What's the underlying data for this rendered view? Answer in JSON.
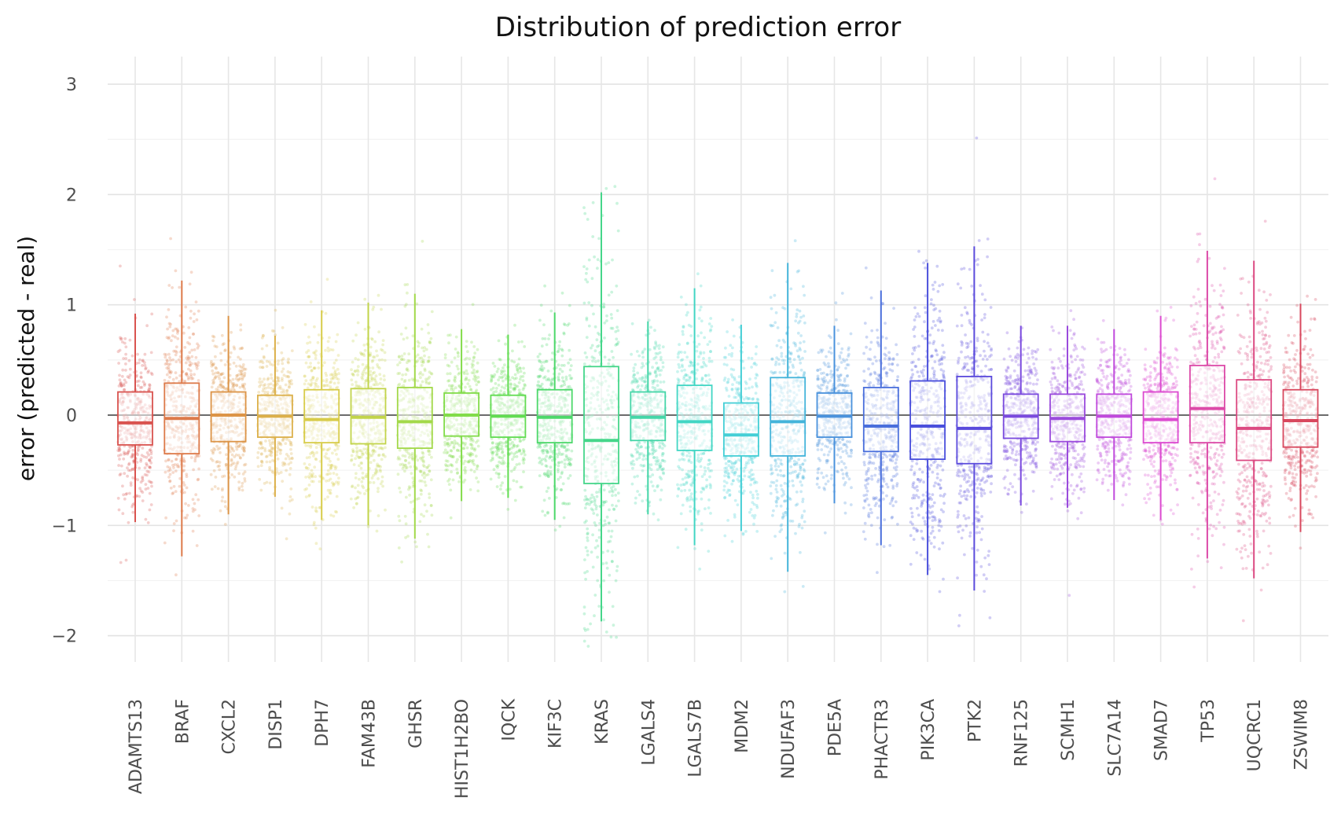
{
  "chart_data": {
    "type": "box",
    "title": "Distribution of prediction error",
    "xlabel": "",
    "ylabel": "error (predicted - real)",
    "ylim": [
      -2.2,
      3.25
    ],
    "yticks": [
      -2,
      -1,
      0,
      1,
      2,
      3
    ],
    "ytick_labels": [
      "−2",
      "−1",
      "0",
      "1",
      "2",
      "3"
    ],
    "grid": true,
    "zero_line": 0,
    "overlay": "jittered points",
    "categories": [
      "ADAMTS13",
      "BRAF",
      "CXCL2",
      "DISP1",
      "DPH7",
      "FAM43B",
      "GHSR",
      "HIST1H2BO",
      "IQCK",
      "KIF3C",
      "KRAS",
      "LGALS4",
      "LGALS7B",
      "MDM2",
      "NDUFAF3",
      "PDE5A",
      "PHACTR3",
      "PIK3CA",
      "PTK2",
      "RNF125",
      "SCMH1",
      "SLC7A14",
      "SMAD7",
      "TP53",
      "UQCRC1",
      "ZSWIM8"
    ],
    "colors": [
      "#d9534f",
      "#dd7a4a",
      "#dc9447",
      "#dcb04a",
      "#d8cc4a",
      "#c2d44a",
      "#a3d94a",
      "#82dc4a",
      "#62dc52",
      "#4dd86a",
      "#45d68a",
      "#45d6a8",
      "#42d6c4",
      "#45cfd6",
      "#44b4da",
      "#4a92dc",
      "#4a6fdc",
      "#4a4fdc",
      "#5a4adc",
      "#7a4ade",
      "#9a4adc",
      "#c04adc",
      "#dc4ad0",
      "#dc4aa8",
      "#dc4a82",
      "#d8485e"
    ],
    "boxes": [
      {
        "name": "ADAMTS13",
        "whislo": -0.97,
        "q1": -0.27,
        "med": -0.07,
        "q3": 0.21,
        "whishi": 0.92
      },
      {
        "name": "BRAF",
        "whislo": -1.28,
        "q1": -0.35,
        "med": -0.03,
        "q3": 0.29,
        "whishi": 1.22
      },
      {
        "name": "CXCL2",
        "whislo": -0.9,
        "q1": -0.24,
        "med": 0.0,
        "q3": 0.21,
        "whishi": 0.9
      },
      {
        "name": "DISP1",
        "whislo": -0.74,
        "q1": -0.2,
        "med": -0.01,
        "q3": 0.18,
        "whishi": 0.72
      },
      {
        "name": "DPH7",
        "whislo": -0.95,
        "q1": -0.25,
        "med": -0.04,
        "q3": 0.23,
        "whishi": 0.95
      },
      {
        "name": "FAM43B",
        "whislo": -1.0,
        "q1": -0.26,
        "med": -0.02,
        "q3": 0.24,
        "whishi": 1.02
      },
      {
        "name": "GHSR",
        "whislo": -1.12,
        "q1": -0.3,
        "med": -0.06,
        "q3": 0.25,
        "whishi": 1.1
      },
      {
        "name": "HIST1H2BO",
        "whislo": -0.78,
        "q1": -0.19,
        "med": 0.0,
        "q3": 0.2,
        "whishi": 0.78
      },
      {
        "name": "IQCK",
        "whislo": -0.75,
        "q1": -0.2,
        "med": -0.01,
        "q3": 0.18,
        "whishi": 0.73
      },
      {
        "name": "KIF3C",
        "whislo": -0.95,
        "q1": -0.25,
        "med": -0.02,
        "q3": 0.23,
        "whishi": 0.93
      },
      {
        "name": "KRAS",
        "whislo": -1.87,
        "q1": -0.62,
        "med": -0.23,
        "q3": 0.44,
        "whishi": 2.02
      },
      {
        "name": "LGALS4",
        "whislo": -0.9,
        "q1": -0.23,
        "med": -0.02,
        "q3": 0.21,
        "whishi": 0.85
      },
      {
        "name": "LGALS7B",
        "whislo": -1.18,
        "q1": -0.32,
        "med": -0.06,
        "q3": 0.27,
        "whishi": 1.15
      },
      {
        "name": "MDM2",
        "whislo": -1.05,
        "q1": -0.37,
        "med": -0.18,
        "q3": 0.11,
        "whishi": 0.82
      },
      {
        "name": "NDUFAF3",
        "whislo": -1.42,
        "q1": -0.37,
        "med": -0.06,
        "q3": 0.34,
        "whishi": 1.38
      },
      {
        "name": "PDE5A",
        "whislo": -0.8,
        "q1": -0.2,
        "med": -0.01,
        "q3": 0.2,
        "whishi": 0.81
      },
      {
        "name": "PHACTR3",
        "whislo": -1.18,
        "q1": -0.33,
        "med": -0.1,
        "q3": 0.25,
        "whishi": 1.13
      },
      {
        "name": "PIK3CA",
        "whislo": -1.45,
        "q1": -0.4,
        "med": -0.1,
        "q3": 0.31,
        "whishi": 1.38
      },
      {
        "name": "PTK2",
        "whislo": -1.59,
        "q1": -0.44,
        "med": -0.12,
        "q3": 0.35,
        "whishi": 1.53
      },
      {
        "name": "RNF125",
        "whislo": -0.82,
        "q1": -0.21,
        "med": -0.01,
        "q3": 0.19,
        "whishi": 0.81
      },
      {
        "name": "SCMH1",
        "whislo": -0.84,
        "q1": -0.24,
        "med": -0.03,
        "q3": 0.19,
        "whishi": 0.81
      },
      {
        "name": "SLC7A14",
        "whislo": -0.77,
        "q1": -0.2,
        "med": -0.01,
        "q3": 0.19,
        "whishi": 0.78
      },
      {
        "name": "SMAD7",
        "whislo": -0.95,
        "q1": -0.25,
        "med": -0.04,
        "q3": 0.21,
        "whishi": 0.9
      },
      {
        "name": "TP53",
        "whislo": -1.3,
        "q1": -0.25,
        "med": 0.06,
        "q3": 0.45,
        "whishi": 1.49
      },
      {
        "name": "UQCRC1",
        "whislo": -1.48,
        "q1": -0.41,
        "med": -0.12,
        "q3": 0.32,
        "whishi": 1.4
      },
      {
        "name": "ZSWIM8",
        "whislo": -1.06,
        "q1": -0.29,
        "med": -0.05,
        "q3": 0.23,
        "whishi": 1.01
      }
    ]
  }
}
